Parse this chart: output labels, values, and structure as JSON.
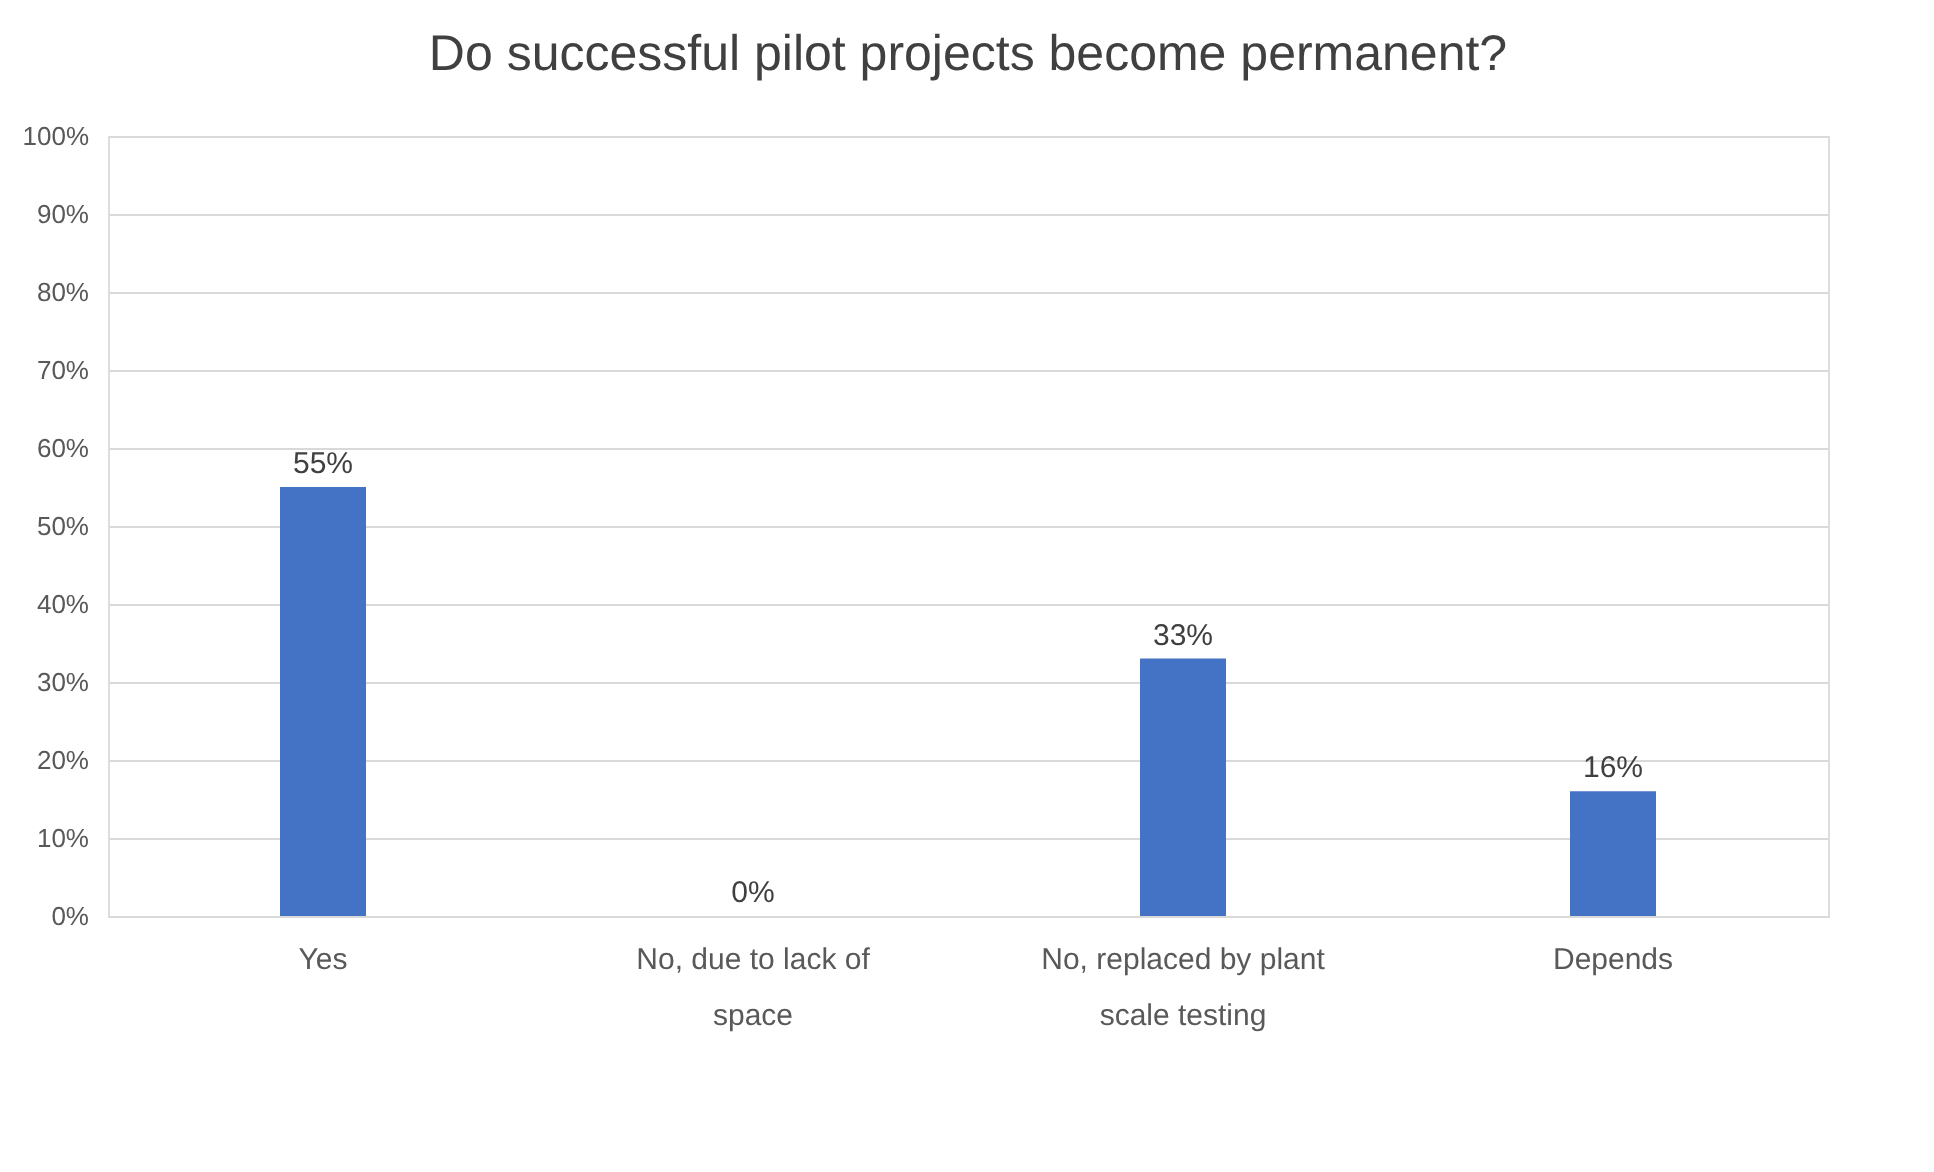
{
  "chart_data": {
    "type": "bar",
    "title": "Do successful pilot projects become permanent?",
    "categories": [
      "Yes",
      "No, due to lack of space",
      "No, replaced by plant scale testing",
      "Depends"
    ],
    "values": [
      55,
      0,
      33,
      16
    ],
    "value_labels": [
      "55%",
      "0%",
      "33%",
      "16%"
    ],
    "color": "#4472c4",
    "ylim": [
      0,
      100
    ],
    "yticks": [
      {
        "value": 0,
        "label": "0%"
      },
      {
        "value": 10,
        "label": "10%"
      },
      {
        "value": 20,
        "label": "20%"
      },
      {
        "value": 30,
        "label": "30%"
      },
      {
        "value": 40,
        "label": "40%"
      },
      {
        "value": 50,
        "label": "50%"
      },
      {
        "value": 60,
        "label": "60%"
      },
      {
        "value": 70,
        "label": "70%"
      },
      {
        "value": 80,
        "label": "80%"
      },
      {
        "value": 90,
        "label": "90%"
      },
      {
        "value": 100,
        "label": "100%"
      }
    ],
    "grid": "y"
  }
}
